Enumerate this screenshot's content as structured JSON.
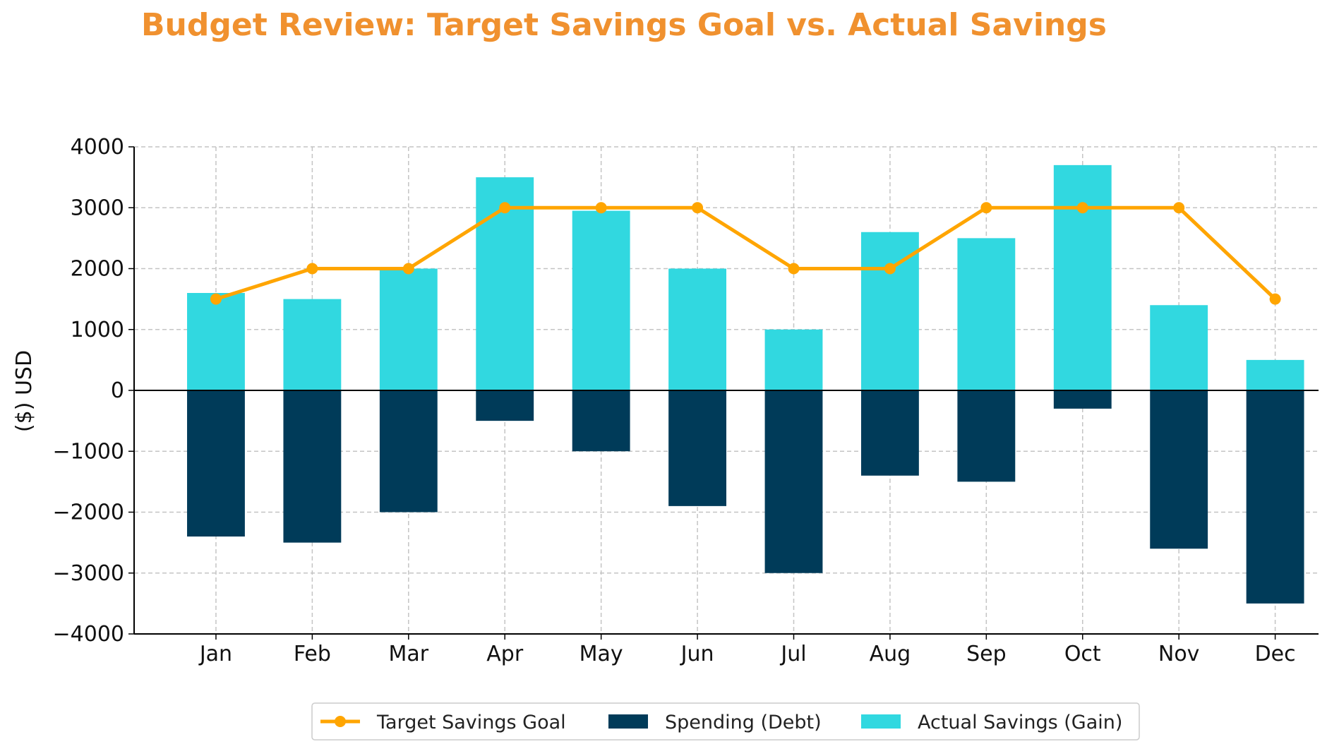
{
  "colors": {
    "title": "#f0912f",
    "target_line": "#ffa500",
    "spending": "#003b59",
    "savings": "#31d8e0",
    "grid": "#c4c4c4",
    "axis": "#000000"
  },
  "chart_data": {
    "type": "bar",
    "title": "Budget Review: Target Savings Goal vs. Actual Savings",
    "xlabel": "",
    "ylabel": "($) USD",
    "ylim": [
      -4000,
      4000
    ],
    "yticks": [
      -4000,
      -3000,
      -2000,
      -1000,
      0,
      1000,
      2000,
      3000,
      4000
    ],
    "ytick_labels": [
      "−4000",
      "−3000",
      "−2000",
      "−1000",
      "0",
      "1000",
      "2000",
      "3000",
      "4000"
    ],
    "grid": true,
    "legend_position": "bottom-center",
    "categories": [
      "Jan",
      "Feb",
      "Mar",
      "Apr",
      "May",
      "Jun",
      "Jul",
      "Aug",
      "Sep",
      "Oct",
      "Nov",
      "Dec"
    ],
    "series": [
      {
        "name": "Target Savings Goal",
        "kind": "line",
        "color": "#ffa500",
        "values": [
          1500,
          2000,
          2000,
          3000,
          3000,
          3000,
          2000,
          2000,
          3000,
          3000,
          3000,
          1500
        ]
      },
      {
        "name": "Spending (Debt)",
        "kind": "bar",
        "color": "#003b59",
        "values": [
          -2400,
          -2500,
          -2000,
          -500,
          -1000,
          -1900,
          -3000,
          -1400,
          -1500,
          -300,
          -2600,
          -3500
        ]
      },
      {
        "name": "Actual Savings (Gain)",
        "kind": "bar",
        "color": "#31d8e0",
        "values": [
          1600,
          1500,
          2000,
          3500,
          2950,
          2000,
          1000,
          2600,
          2500,
          3700,
          1400,
          500
        ]
      }
    ]
  }
}
